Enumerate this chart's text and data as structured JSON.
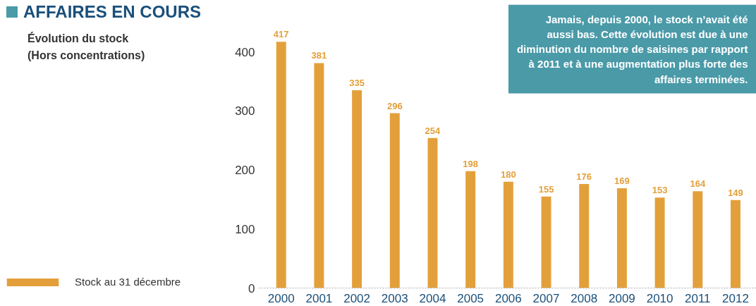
{
  "chart_data": {
    "type": "bar",
    "title": "AFFAIRES EN COURS",
    "subtitle": "Évolution du stock\n(Hors concentrations)",
    "categories": [
      "2000",
      "2001",
      "2002",
      "2003",
      "2004",
      "2005",
      "2006",
      "2007",
      "2008",
      "2009",
      "2010",
      "2011",
      "2012"
    ],
    "series": [
      {
        "name": "Stock au 31 décembre",
        "color": "#e3a03a",
        "values": [
          417,
          381,
          335,
          296,
          254,
          198,
          180,
          155,
          176,
          169,
          153,
          164,
          149
        ]
      }
    ],
    "ylim": [
      0,
      480
    ],
    "yticks": [
      0,
      100,
      200,
      300,
      400
    ],
    "data_labels": true,
    "grid": false,
    "legend": "left",
    "annotations": [
      "Jamais, depuis 2000, le stock n’avait été aussi bas. Cette évolution est due à une diminution du nombre de saisines par rapport à 2011 et à une augmentation plus forte des affaires terminées."
    ]
  }
}
